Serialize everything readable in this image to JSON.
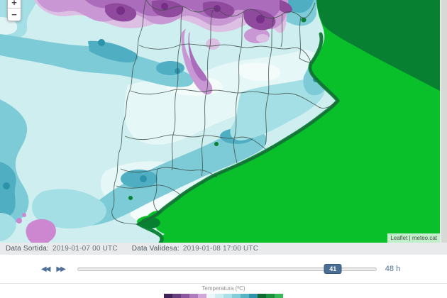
{
  "map": {
    "attribution": "Leaflet | meteo.cat",
    "zoom_in_label": "+",
    "zoom_out_label": "−"
  },
  "status_bar": {
    "sortida_label": "Data Sortida:",
    "sortida_value": "2019-01-07 00 UTC",
    "validesa_label": "Data Validesa:",
    "validesa_value": "2019-01-08 17:00 UTC"
  },
  "timeline": {
    "rewind_icon": "◀◀",
    "forward_icon": "▶▶",
    "handle_value": "41",
    "value": 41,
    "max": 48,
    "max_label": "48 h"
  },
  "legend": {
    "title": "Temperatura (ºC)",
    "colors": [
      "#3e2156",
      "#663e7e",
      "#8c57a0",
      "#af7bbf",
      "#d1a7d9",
      "#ebf7f8",
      "#cdeef0",
      "#aae0e7",
      "#82ced9",
      "#57b4c5",
      "#2e94ab",
      "#0d6c31",
      "#1a923e",
      "#36ba58"
    ]
  },
  "theme": {
    "handle_color": "#4a6d94",
    "control_color": "#4d6f98",
    "sea_bright": "#09c02b",
    "sea_dark": "#078031",
    "cold_purple": "#8f4a9e"
  }
}
